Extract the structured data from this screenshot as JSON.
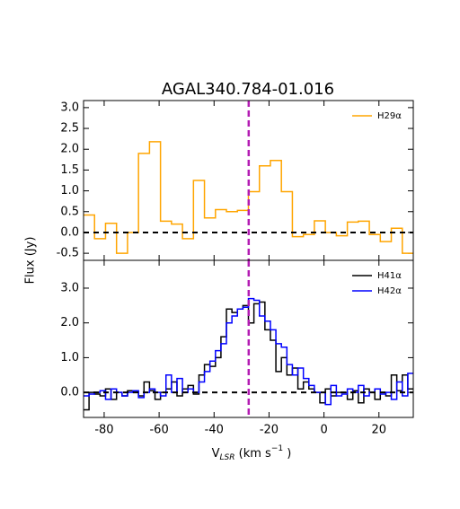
{
  "chart_data": [
    {
      "type": "line",
      "title": "AGAL340.784-01.016",
      "ylabel": "Flux (Jy)",
      "xlim": [
        -87.5,
        32.5
      ],
      "ylim": [
        -0.67,
        3.17
      ],
      "yticks": [
        {
          "value": -0.5,
          "label": "-0.5"
        },
        {
          "value": 0,
          "label": "0.0"
        },
        0.5,
        {
          "value": 1,
          "label": "1.0"
        },
        1.5,
        {
          "value": 2,
          "label": "2.0"
        },
        2.5,
        {
          "value": 3,
          "label": "3.0"
        }
      ],
      "vline": -27.4,
      "vline_color": "#b31cb3",
      "hline": 0,
      "legend": "upper right",
      "x": [
        -85.5,
        -81.5,
        -77.5,
        -73.5,
        -69.5,
        -65.5,
        -61.5,
        -57.5,
        -53.5,
        -49.5,
        -45.5,
        -41.5,
        -37.5,
        -33.5,
        -29.5,
        -25.5,
        -21.5,
        -17.5,
        -13.5,
        -9.5,
        -5.5,
        -1.5,
        2.5,
        6.5,
        10.5,
        14.5,
        18.5,
        22.5,
        26.5,
        30.5
      ],
      "series": [
        {
          "name": "H29α",
          "color": "#ffa500",
          "values": [
            0.42,
            -0.15,
            0.22,
            -0.5,
            0.0,
            1.9,
            2.18,
            0.27,
            0.2,
            -0.15,
            1.25,
            0.35,
            0.55,
            0.5,
            0.53,
            0.98,
            1.6,
            1.73,
            0.98,
            -0.1,
            -0.05,
            0.28,
            0.0,
            -0.08,
            0.25,
            0.27,
            -0.05,
            -0.22,
            0.1,
            -0.5
          ]
        }
      ]
    },
    {
      "type": "line",
      "xlabel": [
        "V",
        "LSR",
        " (km s",
        "−1",
        " )"
      ],
      "xlim": [
        -87.5,
        32.5
      ],
      "ylim": [
        -0.72,
        3.8
      ],
      "xticks": [
        -80,
        -60,
        -40,
        -20,
        0,
        20
      ],
      "yticks": [
        {
          "value": 0,
          "label": "0.0"
        },
        {
          "value": 1,
          "label": "1.0"
        },
        {
          "value": 2,
          "label": "2.0"
        },
        {
          "value": 3,
          "label": "3.0"
        }
      ],
      "vline": -27.4,
      "vline_color": "#b31cb3",
      "hline": 0,
      "legend": "upper right",
      "x": [
        -86.5,
        -84.5,
        -82.5,
        -80.5,
        -78.5,
        -76.5,
        -74.5,
        -72.5,
        -70.5,
        -68.5,
        -66.5,
        -64.5,
        -62.5,
        -60.5,
        -58.5,
        -56.5,
        -54.5,
        -52.5,
        -50.5,
        -48.5,
        -46.5,
        -44.5,
        -42.5,
        -40.5,
        -38.5,
        -36.5,
        -34.5,
        -32.5,
        -30.5,
        -28.5,
        -26.5,
        -24.5,
        -22.5,
        -20.5,
        -18.5,
        -16.5,
        -14.5,
        -12.5,
        -10.5,
        -8.5,
        -6.5,
        -4.5,
        -2.5,
        -0.5,
        1.5,
        3.5,
        5.5,
        7.5,
        9.5,
        11.5,
        13.5,
        15.5,
        17.5,
        19.5,
        21.5,
        23.5,
        25.5,
        27.5,
        29.5,
        31.5
      ],
      "series": [
        {
          "name": "H41α",
          "color": "#000000",
          "values": [
            -0.5,
            0.0,
            -0.05,
            -0.1,
            0.1,
            -0.2,
            0.0,
            -0.1,
            0.05,
            0.0,
            -0.1,
            0.3,
            0.05,
            -0.2,
            0.0,
            0.1,
            0.3,
            -0.1,
            0.1,
            0.2,
            -0.05,
            0.5,
            0.8,
            0.75,
            1.0,
            1.6,
            2.4,
            2.3,
            2.4,
            2.5,
            2.0,
            2.55,
            2.6,
            1.8,
            1.5,
            0.6,
            1.0,
            0.5,
            0.7,
            0.1,
            0.3,
            0.1,
            0.0,
            -0.3,
            0.1,
            -0.1,
            0.0,
            0.0,
            -0.2,
            0.05,
            -0.3,
            0.1,
            0.0,
            -0.2,
            0.0,
            -0.1,
            0.5,
            0.05,
            0.5,
            0.1
          ]
        },
        {
          "name": "H42α",
          "color": "#0000ff",
          "values": [
            -0.1,
            -0.05,
            0.0,
            0.05,
            -0.2,
            0.1,
            0.0,
            -0.1,
            0.0,
            0.05,
            -0.15,
            0.0,
            0.1,
            0.0,
            -0.1,
            0.5,
            0.0,
            0.4,
            0.0,
            0.1,
            0.0,
            0.3,
            0.6,
            0.9,
            1.2,
            1.4,
            2.0,
            2.2,
            2.4,
            2.45,
            2.7,
            2.65,
            2.2,
            2.05,
            1.8,
            1.4,
            1.3,
            0.8,
            0.5,
            0.7,
            0.4,
            0.2,
            0.0,
            0.0,
            -0.35,
            0.2,
            -0.1,
            -0.05,
            0.1,
            0.0,
            0.2,
            -0.1,
            0.0,
            0.1,
            -0.05,
            0.0,
            -0.2,
            0.3,
            -0.1,
            0.55
          ]
        }
      ]
    }
  ]
}
